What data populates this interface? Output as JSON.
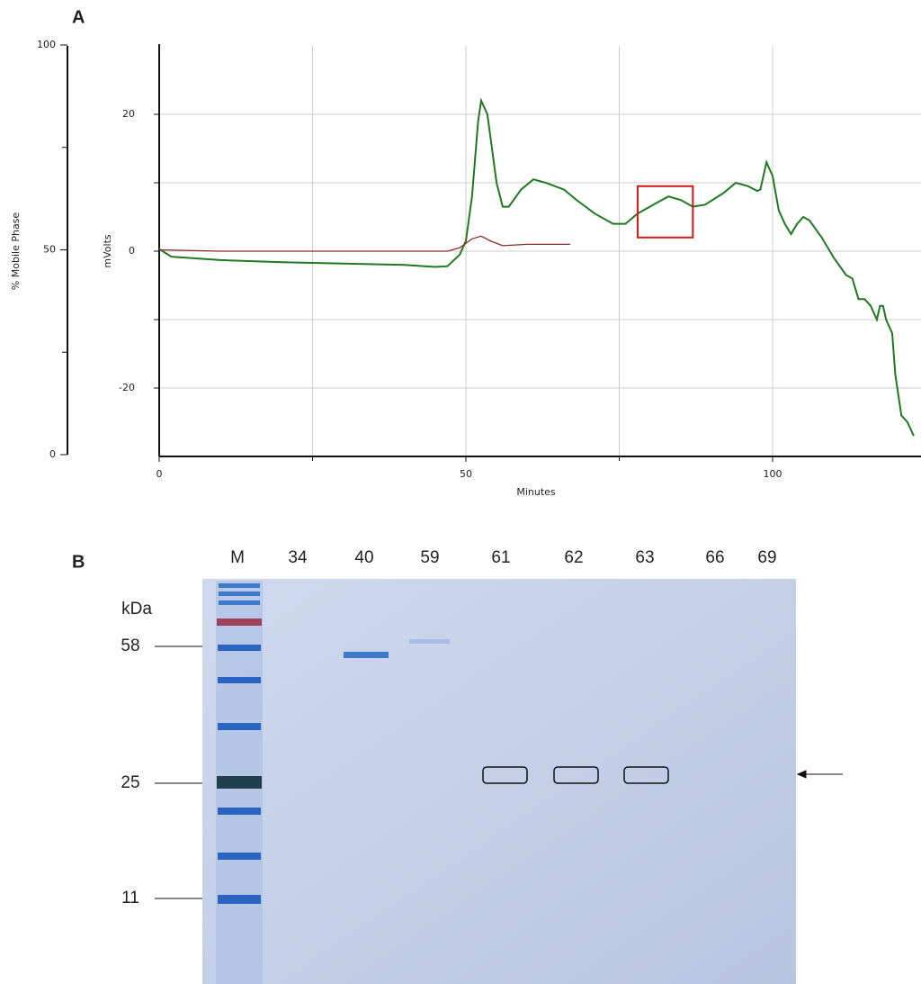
{
  "chart_data": {
    "type": "line",
    "panel": "A",
    "x_label": "Minutes",
    "y_label": "mVolts",
    "y2_label": "% Mobile Phase",
    "xlim": [
      0,
      124
    ],
    "xticks": [
      0,
      50,
      100
    ],
    "ylim": [
      -30,
      30
    ],
    "yticks": [
      -20,
      0,
      20
    ],
    "y2lim": [
      0,
      100
    ],
    "y2ticks": [
      0,
      50,
      100
    ],
    "grid": true,
    "minor_grid": true,
    "series": [
      {
        "color": "#1f7a1f",
        "x": [
          0,
          2,
          10,
          20,
          30,
          40,
          45,
          47,
          49,
          50,
          51,
          52,
          52.5,
          53.5,
          55,
          56,
          57,
          59,
          61,
          63,
          66,
          68,
          71,
          74,
          76,
          78,
          81,
          83,
          85,
          87,
          89,
          92,
          94,
          96,
          97.5,
          98,
          99,
          100,
          101,
          102,
          103,
          104,
          105,
          106,
          108,
          110,
          112,
          113,
          114,
          115,
          116,
          117,
          117.5,
          118,
          118.5,
          119.5,
          120,
          121,
          122,
          123
        ],
        "values": [
          0.3,
          -0.8,
          -1.3,
          -1.6,
          -1.8,
          -2,
          -2.3,
          -2.2,
          -0.5,
          1.5,
          8,
          19,
          22,
          20,
          10,
          6.5,
          6.5,
          9,
          10.5,
          10,
          9,
          7.5,
          5.5,
          4,
          4,
          5.5,
          7,
          8,
          7.5,
          6.5,
          6.8,
          8.5,
          10,
          9.5,
          8.8,
          9,
          13,
          11,
          6,
          4,
          2.5,
          4,
          5,
          4.5,
          2,
          -1,
          -3.5,
          -4,
          -7,
          -7,
          -8,
          -10,
          -8,
          -8,
          -10,
          -12,
          -18,
          -24,
          -25,
          -27
        ]
      },
      {
        "color": "#8b2a2a",
        "x": [
          0,
          10,
          20,
          30,
          40,
          47,
          49,
          51,
          52.5,
          54,
          56,
          60,
          63,
          67
        ],
        "values": [
          0.2,
          0,
          0,
          0,
          0,
          0,
          0.5,
          1.8,
          2.2,
          1.5,
          0.8,
          1,
          1,
          1
        ]
      }
    ],
    "highlight": {
      "color": "#d11a1a",
      "x": [
        78,
        87
      ],
      "y": [
        2,
        9.5
      ]
    }
  },
  "gel": {
    "panel": "B",
    "lanes": [
      "M",
      "34",
      "40",
      "59",
      "61",
      "62",
      "63",
      "66",
      "69"
    ],
    "unit": "kDa",
    "markers": [
      "58",
      "25",
      "11"
    ]
  }
}
